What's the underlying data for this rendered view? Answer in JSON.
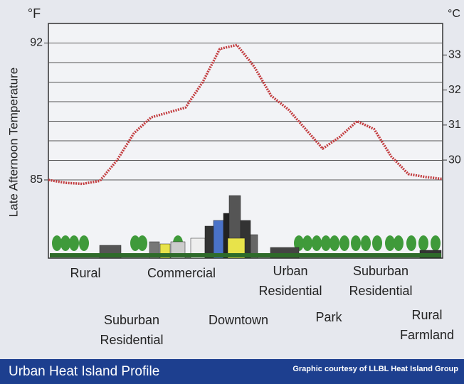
{
  "chart_data": {
    "type": "line",
    "title": "Urban Heat Island Profile",
    "credit": "Graphic courtesy of LLBL Heat Island Group",
    "y_label": "Late Afternoon Temperature",
    "y_unit": "°F",
    "y2_unit": "°C",
    "ylim": [
      81,
      93
    ],
    "yticks": [
      85,
      92
    ],
    "ygrid": [
      85,
      86,
      87,
      88,
      89,
      90,
      91,
      92
    ],
    "y2lim": [
      27.2,
      33.9
    ],
    "y2ticks": [
      30,
      31,
      32,
      33
    ],
    "series": [
      {
        "color": "#c23b3e",
        "values": [
          85.0,
          84.85,
          84.8,
          84.95,
          86.0,
          87.4,
          88.2,
          88.45,
          88.7,
          90.0,
          91.7,
          91.9,
          90.8,
          89.3,
          88.6,
          87.6,
          86.6,
          87.2,
          88.0,
          87.6,
          86.2,
          85.3,
          85.15,
          85.05
        ]
      }
    ],
    "zones": [
      {
        "lines": [
          "Rural"
        ]
      },
      {
        "lines": [
          "Commercial"
        ]
      },
      {
        "lines": [
          "Urban",
          "Residential"
        ]
      },
      {
        "lines": [
          "Suburban",
          "Residential"
        ]
      },
      {
        "lines": [
          "Suburban",
          "Residential"
        ]
      },
      {
        "lines": [
          "Downtown"
        ]
      },
      {
        "lines": [
          "Park"
        ]
      },
      {
        "lines": [
          "Rural",
          "Farmland"
        ]
      }
    ]
  }
}
